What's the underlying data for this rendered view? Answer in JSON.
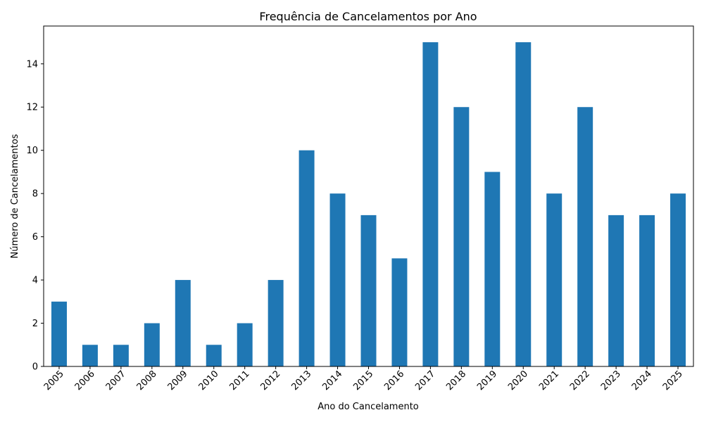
{
  "chart_data": {
    "type": "bar",
    "title": "Frequência de Cancelamentos por Ano",
    "xlabel": "Ano do Cancelamento",
    "ylabel": "Número de Cancelamentos",
    "categories": [
      "2005",
      "2006",
      "2007",
      "2008",
      "2009",
      "2010",
      "2011",
      "2012",
      "2013",
      "2014",
      "2015",
      "2016",
      "2017",
      "2018",
      "2019",
      "2020",
      "2021",
      "2022",
      "2023",
      "2024",
      "2025"
    ],
    "values": [
      3,
      1,
      1,
      2,
      4,
      1,
      2,
      4,
      10,
      8,
      7,
      5,
      15,
      12,
      9,
      15,
      8,
      12,
      7,
      7,
      8
    ],
    "ylim": [
      0,
      15.75
    ],
    "yticks": [
      0,
      2,
      4,
      6,
      8,
      10,
      12,
      14
    ],
    "bar_color": "#1f77b4",
    "grid": false,
    "legend": "none"
  }
}
